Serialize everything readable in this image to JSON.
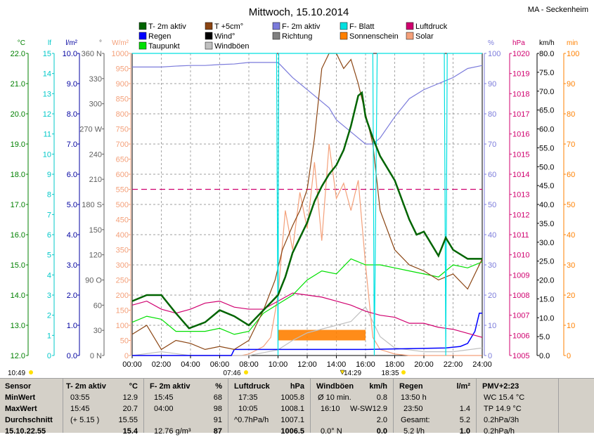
{
  "title": "Mittwoch, 15.10.2014",
  "station": "MA - Seckenheim",
  "legend": [
    {
      "label": "T- 2m aktiv",
      "color": "#006400"
    },
    {
      "label": "T +5cm°",
      "color": "#8b4513"
    },
    {
      "label": "F- 2m aktiv",
      "color": "#7b7bdb"
    },
    {
      "label": "F- Blatt",
      "color": "#00e0e0"
    },
    {
      "label": "Luftdruck",
      "color": "#d0006f"
    },
    {
      "label": "Regen",
      "color": "#0000ff"
    },
    {
      "label": "Wind°",
      "color": "#000000"
    },
    {
      "label": "Richtung",
      "color": "#808080"
    },
    {
      "label": "Sonnenschein",
      "color": "#ff8000"
    },
    {
      "label": "Solar",
      "color": "#f4a07a"
    },
    {
      "label": "Taupunkt",
      "color": "#00e000"
    },
    {
      "label": "Windböen",
      "color": "#c0c0c0"
    }
  ],
  "axes": {
    "temp": {
      "unit": "°C",
      "color": "#008000",
      "ticks": [
        "22.0",
        "21.0",
        "20.0",
        "19.0",
        "18.0",
        "17.0",
        "16.0",
        "15.0",
        "14.0",
        "13.0",
        "12.0"
      ]
    },
    "lf": {
      "unit": "lf",
      "color": "#00c8c8",
      "ticks": [
        "15",
        "14",
        "13",
        "12",
        "11",
        "10",
        "9",
        "8",
        "7",
        "6",
        "5",
        "4",
        "3",
        "2",
        "1",
        "0"
      ]
    },
    "rain": {
      "unit": "l/m²",
      "color": "#0000a0",
      "ticks": [
        "10.0",
        "9.0",
        "8.0",
        "7.0",
        "6.0",
        "5.0",
        "4.0",
        "3.0",
        "2.0",
        "1.0",
        "0.0"
      ]
    },
    "dir": {
      "unit": "°",
      "color": "#606060",
      "ticks": [
        "360 N",
        "330",
        "300",
        "270 W",
        "240",
        "210",
        "180 S",
        "150",
        "120",
        "90 O",
        "60",
        "30",
        "0 N"
      ]
    },
    "solar": {
      "unit": "W/m²",
      "color": "#f4a07a",
      "ticks": [
        "1000",
        "950",
        "900",
        "850",
        "800",
        "750",
        "700",
        "650",
        "600",
        "550",
        "500",
        "450",
        "400",
        "350",
        "300",
        "250",
        "200",
        "150",
        "100",
        "50",
        "0"
      ]
    },
    "hum": {
      "unit": "%",
      "color": "#7b7bdb",
      "ticks": [
        "100",
        "90",
        "80",
        "70",
        "60",
        "50",
        "40",
        "30",
        "20",
        "10",
        "0"
      ]
    },
    "press": {
      "unit": "hPa",
      "color": "#d0006f",
      "ticks": [
        "1020",
        "1019",
        "1018",
        "1017",
        "1016",
        "1015",
        "1014",
        "1013",
        "1012",
        "1011",
        "1010",
        "1009",
        "1008",
        "1007",
        "1006",
        "1005"
      ]
    },
    "wind": {
      "unit": "km/h",
      "color": "#000000",
      "ticks": [
        "80.0",
        "75.0",
        "70.0",
        "65.0",
        "60.0",
        "55.0",
        "50.0",
        "45.0",
        "40.0",
        "35.0",
        "30.0",
        "25.0",
        "20.0",
        "15.0",
        "10.0",
        "5.0",
        "0.0"
      ]
    },
    "min": {
      "unit": "min",
      "color": "#ff8000",
      "ticks": [
        "100",
        "90",
        "80",
        "70",
        "60",
        "50",
        "40",
        "30",
        "20",
        "10",
        "0"
      ]
    }
  },
  "x_ticks": [
    "00:00",
    "02:00",
    "04:00",
    "06:00",
    "08:00",
    "10:00",
    "12:00",
    "14:00",
    "16:00",
    "18:00",
    "20:00",
    "22:00",
    "24:00"
  ],
  "sun_events": {
    "sunrise": "07:46",
    "noon": "14:29",
    "sunset": "18:35",
    "moon": "10:49"
  },
  "chart_data": {
    "type": "line",
    "x_unit": "hour of day",
    "xlim": [
      0,
      24
    ],
    "series": [
      {
        "name": "T- 2m aktiv",
        "axis": "°C",
        "ylim": [
          12,
          22
        ],
        "x": [
          0,
          1,
          1.5,
          2,
          3,
          3.9,
          5,
          6,
          7,
          8,
          9,
          10,
          10.5,
          11,
          11.5,
          12,
          12.5,
          13,
          13.5,
          14,
          14.5,
          15,
          15.5,
          15.75,
          16,
          16.5,
          17,
          18,
          19,
          19.5,
          20,
          21,
          21.5,
          22,
          23,
          23.5,
          24
        ],
        "y": [
          13.8,
          14.0,
          14.0,
          14.0,
          13.4,
          12.9,
          13.1,
          13.5,
          13.3,
          13.0,
          13.5,
          14.0,
          14.6,
          15.4,
          15.9,
          16.4,
          17.1,
          17.6,
          18.0,
          18.3,
          18.8,
          19.6,
          20.6,
          20.7,
          19.9,
          19.2,
          18.6,
          17.8,
          16.5,
          16.0,
          16.1,
          15.3,
          15.9,
          15.5,
          15.2,
          15.2,
          15.2
        ]
      },
      {
        "name": "T +5cm°",
        "axis": "°C",
        "ylim": [
          12,
          22
        ],
        "x": [
          0,
          1,
          2,
          3,
          4,
          5,
          6,
          7,
          8,
          9,
          9.8,
          10.3,
          11,
          11.5,
          12,
          12.5,
          13,
          13.5,
          14,
          14.5,
          15,
          15.5,
          16,
          16.5,
          17,
          18,
          19,
          20,
          21,
          22,
          23,
          24
        ],
        "y": [
          12.7,
          13.0,
          12.2,
          12.5,
          12.4,
          12.2,
          12.3,
          12.2,
          12.5,
          13.5,
          14.5,
          15.5,
          16.3,
          16.8,
          17.5,
          19.2,
          21.5,
          22.0,
          22.0,
          21.5,
          21.8,
          21.0,
          20.0,
          19.0,
          16.8,
          15.5,
          15.0,
          14.8,
          14.5,
          14.7,
          14.2,
          15.2
        ]
      },
      {
        "name": "Taupunkt",
        "axis": "°C",
        "ylim": [
          12,
          22
        ],
        "x": [
          0,
          1,
          2,
          3,
          4,
          5,
          6,
          7,
          8,
          9,
          10,
          11,
          12,
          13,
          14,
          15,
          16,
          17,
          18,
          19,
          20,
          21,
          22,
          23,
          24
        ],
        "y": [
          13.1,
          13.3,
          13.2,
          12.8,
          12.8,
          12.8,
          12.9,
          12.7,
          12.8,
          13.4,
          13.7,
          14.0,
          14.5,
          14.8,
          14.7,
          15.2,
          15.0,
          15.0,
          14.9,
          14.8,
          14.7,
          14.6,
          15.0,
          14.9,
          15.1
        ]
      },
      {
        "name": "F- 2m aktiv",
        "axis": "%",
        "ylim": [
          0,
          100
        ],
        "x": [
          0,
          1,
          2,
          3,
          4,
          5,
          6,
          7,
          8,
          9,
          10,
          11,
          12,
          12.5,
          13,
          13.5,
          14,
          14.5,
          15,
          15.5,
          16,
          16.5,
          17,
          18,
          19,
          20,
          21,
          22,
          23,
          24
        ],
        "y": [
          95.5,
          95.5,
          95.5,
          95.8,
          96.0,
          96.0,
          96.3,
          96.5,
          97.0,
          97.0,
          97.0,
          92.0,
          88.0,
          86.0,
          84.0,
          82.0,
          78.0,
          76.0,
          74.0,
          72.0,
          70.0,
          70.0,
          72.0,
          79.0,
          85.0,
          88.0,
          90.0,
          92.0,
          95.0,
          96.0
        ]
      },
      {
        "name": "Luftdruck",
        "axis": "hPa",
        "ylim": [
          1005,
          1020
        ],
        "x": [
          0,
          1,
          2,
          3,
          4,
          5,
          6,
          7,
          8,
          9,
          10,
          11,
          12,
          13,
          14,
          15,
          16,
          17,
          18,
          19,
          20,
          21,
          22,
          23,
          24
        ],
        "y": [
          1007.5,
          1007.7,
          1007.3,
          1007.1,
          1007.3,
          1007.6,
          1007.7,
          1007.4,
          1007.3,
          1007.3,
          1007.7,
          1008.1,
          1008.0,
          1007.9,
          1007.7,
          1007.5,
          1007.2,
          1007.0,
          1006.9,
          1006.6,
          1006.6,
          1006.4,
          1006.3,
          1006.1,
          1005.9
        ]
      },
      {
        "name": "Solar",
        "axis": "W/m²",
        "ylim": [
          0,
          1000
        ],
        "x": [
          0,
          7.5,
          8,
          9,
          9.5,
          10,
          10.5,
          11,
          11.5,
          12,
          12.5,
          13,
          13.5,
          14,
          14.5,
          15,
          15.5,
          16,
          16.5,
          17,
          18,
          19,
          24
        ],
        "y": [
          0,
          0,
          5,
          30,
          60,
          200,
          480,
          350,
          540,
          420,
          640,
          380,
          700,
          520,
          570,
          480,
          580,
          300,
          60,
          20,
          5,
          0,
          0
        ]
      },
      {
        "name": "Sonnenschein",
        "axis": "min",
        "ylim": [
          0,
          100
        ],
        "x": [
          10,
          16
        ],
        "y": [
          5,
          5
        ]
      },
      {
        "name": "Regen",
        "axis": "l/m²",
        "ylim": [
          0,
          10
        ],
        "x": [
          0,
          6.8,
          7,
          16,
          16.1,
          21.5,
          22.5,
          23,
          23.5,
          23.8,
          24
        ],
        "y": [
          0,
          0,
          0.2,
          0.2,
          0.2,
          0.25,
          0.3,
          0.4,
          0.8,
          1.4,
          1.4
        ]
      },
      {
        "name": "F- Blatt",
        "axis": "%",
        "ylim": [
          0,
          100
        ],
        "x": [
          0,
          9.9,
          10,
          10.05,
          16.5,
          16.6,
          16.8,
          17.0,
          21.4,
          21.5,
          21.6,
          23.0,
          23.1,
          24
        ],
        "y": [
          100,
          100,
          0,
          100,
          100,
          0,
          100,
          100,
          100,
          0,
          100,
          100,
          100,
          100
        ]
      },
      {
        "name": "Windböen",
        "axis": "km/h",
        "ylim": [
          0,
          80
        ],
        "x": [
          0,
          2,
          4,
          6,
          8,
          10,
          11,
          12,
          13,
          14,
          15,
          16,
          17,
          18,
          20,
          22,
          24
        ],
        "y": [
          0,
          1,
          0,
          0,
          0,
          1.5,
          4,
          6,
          7,
          8,
          9,
          12.9,
          5,
          2,
          1,
          1,
          2
        ]
      }
    ],
    "reference_line": {
      "axis": "W/m²",
      "value": 550,
      "color": "#d0006f",
      "dash": true
    },
    "grid": true
  },
  "stats": {
    "labels": {
      "sensor": "Sensor",
      "min": "MinWert",
      "max": "MaxWert",
      "avg": "Durchschnitt",
      "date": "15.10.22.55"
    },
    "temp": {
      "head": "T- 2m aktiv",
      "unit": "°C",
      "min_t": "03:55",
      "min_v": "12.9",
      "max_t": "15:45",
      "max_v": "20.7",
      "avg_t": "(+ 5.15 )",
      "avg_v": "15.55",
      "last": "15.4"
    },
    "hum": {
      "head": "F- 2m aktiv",
      "unit": "%",
      "min_t": "15:45",
      "min_v": "68",
      "max_t": "04:00",
      "max_v": "98",
      "avg_v": "91",
      "last_t": "12.76 g/m³",
      "last": "87"
    },
    "press": {
      "head": "Luftdruck",
      "unit": "hPa",
      "min_t": "17:35",
      "min_v": "1005.8",
      "max_t": "10:05",
      "max_v": "1008.1",
      "avg_t": "^0.7hPa/h",
      "avg_v": "1007.1",
      "last": "1006.5"
    },
    "wind": {
      "head": "Windböen",
      "unit": "km/h",
      "r1_t": "Ø 10 min.",
      "r1_v": "0.8",
      "r2_t": "16:10",
      "r2_d": "W-SW",
      "r2_v": "12.9",
      "r3_v": "2.0",
      "r4_t": "0.0° N",
      "r4_v": "0.0"
    },
    "rain": {
      "head": "Regen",
      "unit": "l/m²",
      "r1_t": "13:50 h",
      "r2_t": "23:50",
      "r2_v": "1.4",
      "r3_t": "Gesamt:",
      "r3_v": "5.2",
      "r4_t": "5.2 l/h",
      "r4_v": "1.0"
    },
    "pmv": {
      "head": "PMV+2:23",
      "r1": "WC 15.4 °C",
      "r2": "TP 14.9 °C",
      "r3": "0.2hPa/3h",
      "r4": "0.2hPa/h"
    }
  }
}
